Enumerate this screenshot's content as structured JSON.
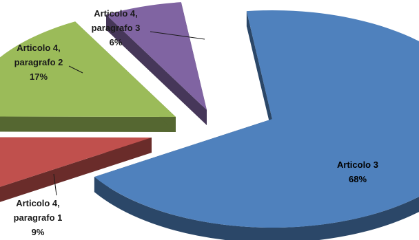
{
  "chart_data": {
    "type": "pie",
    "style": "3d-exploded",
    "slices": [
      {
        "name_lines": [
          "Articolo 3"
        ],
        "value": 68,
        "label": "68%",
        "color": "#4f81bd"
      },
      {
        "name_lines": [
          "Articolo 4,",
          "paragrafo 1"
        ],
        "value": 9,
        "label": "9%",
        "color": "#c0504d"
      },
      {
        "name_lines": [
          "Articolo 4,",
          "paragrafo 2"
        ],
        "value": 17,
        "label": "17%",
        "color": "#9bbb59"
      },
      {
        "name_lines": [
          "Articolo 4,",
          "paragrafo 3"
        ],
        "value": 6,
        "label": "6%",
        "color": "#8064a2"
      }
    ]
  }
}
